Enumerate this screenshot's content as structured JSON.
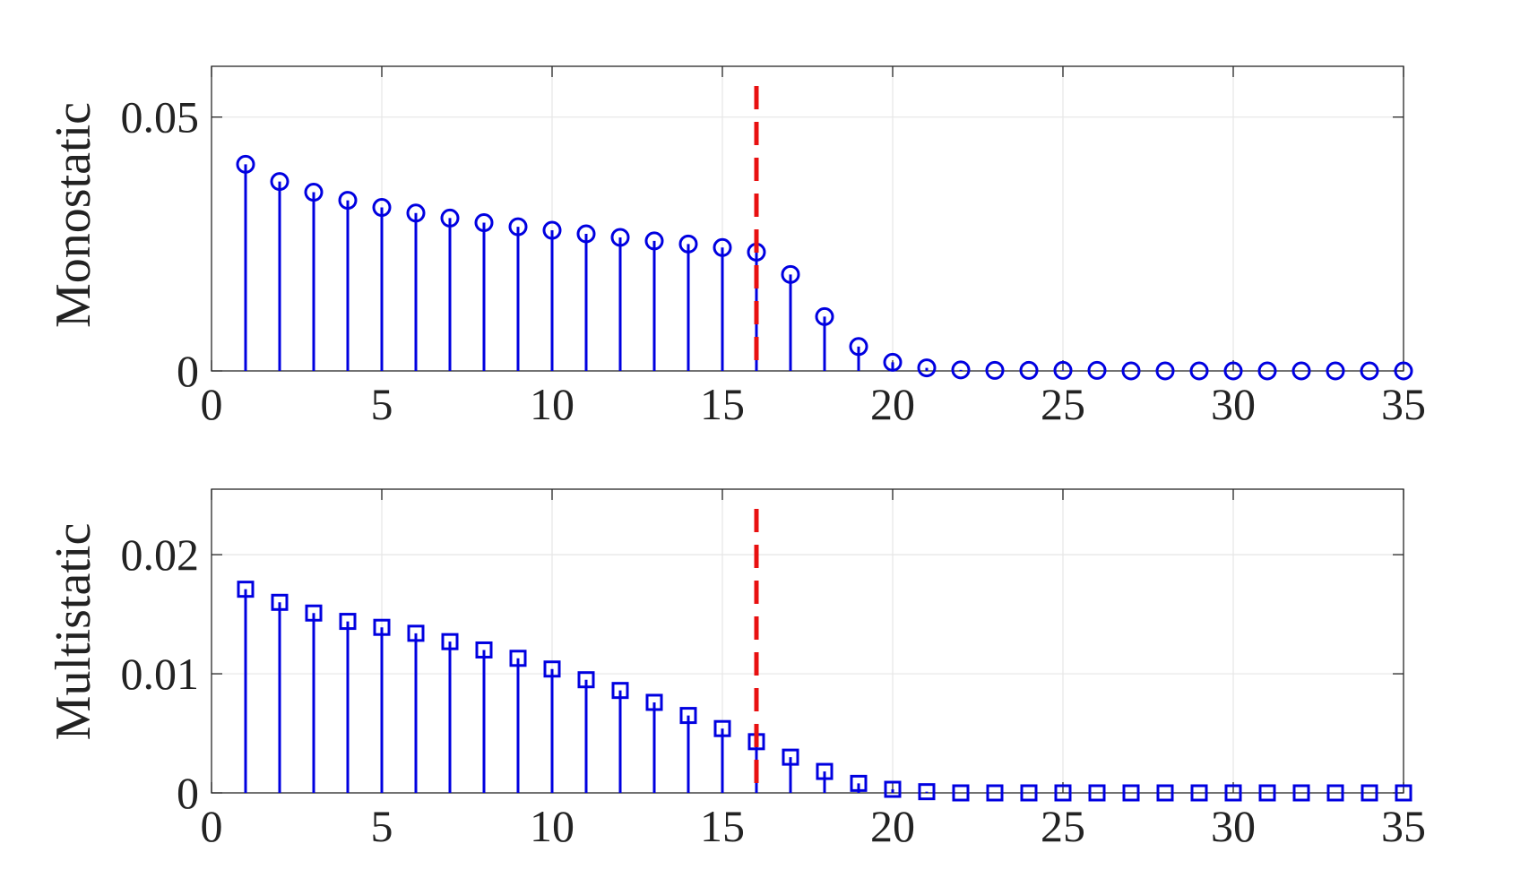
{
  "chart_data": [
    {
      "type": "stem",
      "ylabel": "Monostatic",
      "xlim": [
        0,
        35
      ],
      "ylim": [
        0,
        0.06
      ],
      "xticks": [
        "0",
        "5",
        "10",
        "15",
        "20",
        "25",
        "30",
        "35"
      ],
      "yticks": [
        "0",
        "0.05"
      ],
      "ytick_values": [
        0,
        0.05
      ],
      "grid": true,
      "marker": "circle",
      "series_color": "#0000e0",
      "x": [
        1,
        2,
        3,
        4,
        5,
        6,
        7,
        8,
        9,
        10,
        11,
        12,
        13,
        14,
        15,
        16,
        17,
        18,
        19,
        20,
        21,
        22,
        23,
        24,
        25,
        26,
        27,
        28,
        29,
        30,
        31,
        32,
        33,
        34,
        35
      ],
      "values": [
        0.0407,
        0.0373,
        0.0352,
        0.0336,
        0.0322,
        0.0311,
        0.0301,
        0.0292,
        0.0284,
        0.0277,
        0.027,
        0.0263,
        0.0256,
        0.025,
        0.0243,
        0.0234,
        0.019,
        0.0107,
        0.0048,
        0.0017,
        0.0006,
        0.0002,
        0.0001,
        0.0001,
        0.0001,
        0.0001,
        0,
        0,
        0,
        0,
        0,
        0,
        0,
        0,
        0
      ],
      "vline": {
        "x": 16,
        "color": "#e81010",
        "style": "dashed"
      }
    },
    {
      "type": "stem",
      "ylabel": "Multistatic",
      "xlim": [
        0,
        35
      ],
      "ylim": [
        0,
        0.0255
      ],
      "xticks": [
        "0",
        "5",
        "10",
        "15",
        "20",
        "25",
        "30",
        "35"
      ],
      "yticks": [
        "0",
        "0.01",
        "0.02"
      ],
      "ytick_values": [
        0,
        0.01,
        0.02
      ],
      "grid": true,
      "marker": "square",
      "series_color": "#0000e0",
      "x": [
        1,
        2,
        3,
        4,
        5,
        6,
        7,
        8,
        9,
        10,
        11,
        12,
        13,
        14,
        15,
        16,
        17,
        18,
        19,
        20,
        21,
        22,
        23,
        24,
        25,
        26,
        27,
        28,
        29,
        30,
        31,
        32,
        33,
        34,
        35
      ],
      "values": [
        0.0171,
        0.016,
        0.0151,
        0.0144,
        0.0139,
        0.0134,
        0.0127,
        0.012,
        0.0113,
        0.0104,
        0.0095,
        0.0086,
        0.0076,
        0.0065,
        0.0054,
        0.0043,
        0.003,
        0.0018,
        0.0008,
        0.0003,
        0.0001,
        0,
        0,
        0,
        0,
        0,
        0,
        0,
        0,
        0,
        0,
        0,
        0,
        0,
        0
      ],
      "vline": {
        "x": 16,
        "color": "#e81010",
        "style": "dashed"
      }
    }
  ]
}
